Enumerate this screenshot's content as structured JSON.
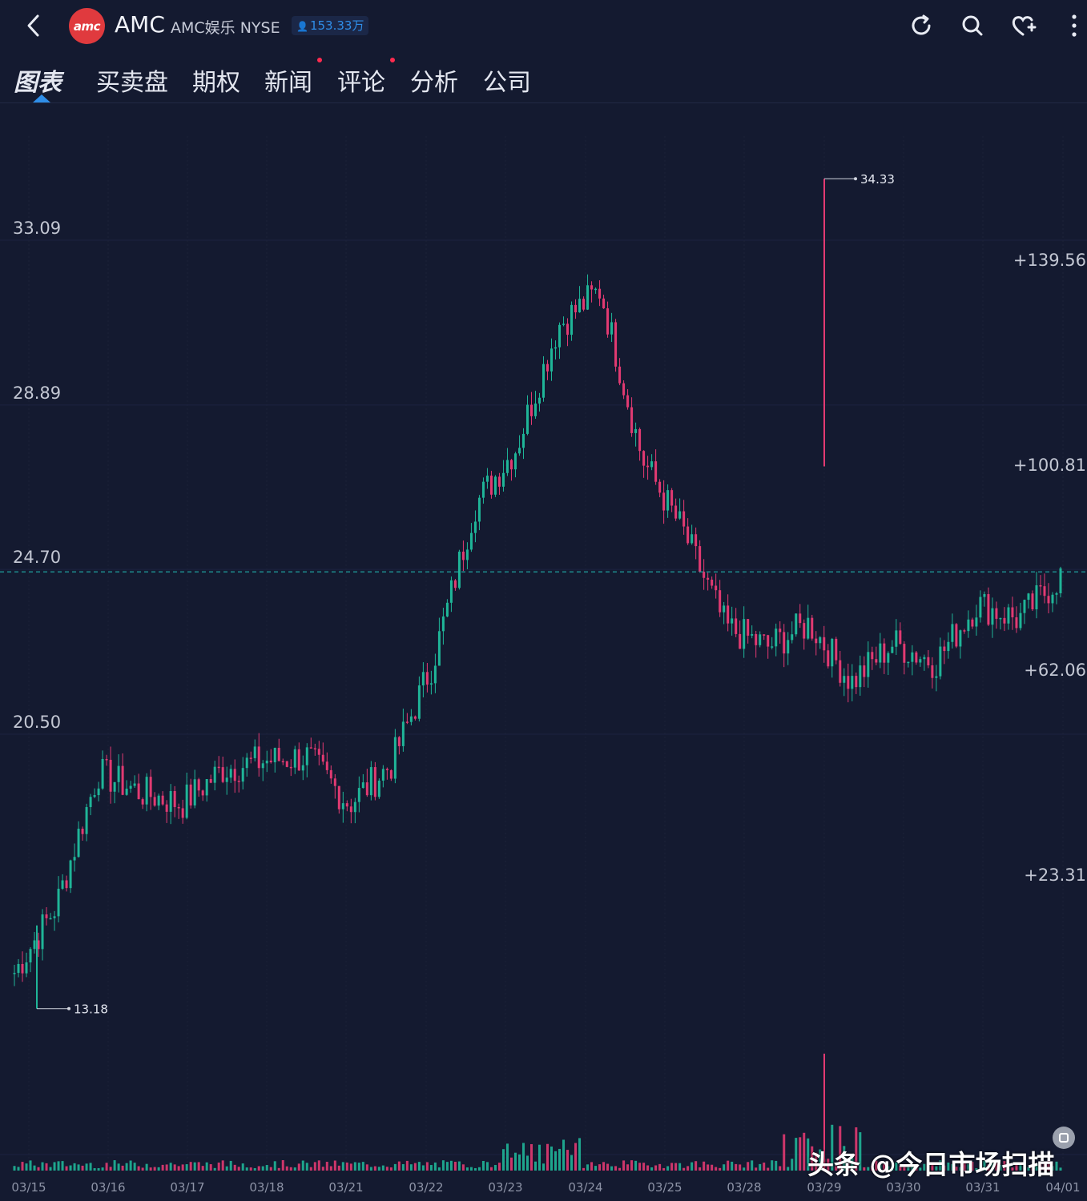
{
  "header": {
    "logo_text": "amc",
    "ticker": "AMC",
    "company": "AMC娱乐 NYSE",
    "followers": "153.33万",
    "icons": [
      "back-icon",
      "refresh-icon",
      "search-icon",
      "heart-add-icon",
      "more-icon"
    ]
  },
  "tabs": [
    {
      "label": "图表",
      "active": true,
      "dot": false
    },
    {
      "label": "买卖盘",
      "active": false,
      "dot": false
    },
    {
      "label": "期权",
      "active": false,
      "dot": false
    },
    {
      "label": "新闻",
      "active": false,
      "dot": true
    },
    {
      "label": "评论",
      "active": false,
      "dot": true
    },
    {
      "label": "分析",
      "active": false,
      "dot": false
    },
    {
      "label": "公司",
      "active": false,
      "dot": false
    }
  ],
  "colors": {
    "background": "#141a30",
    "up": "#1fb598",
    "down": "#e23a72",
    "accent": "#2f8ee8",
    "reference_line": "#1fa3a0"
  },
  "chart_data": {
    "type": "candlestick",
    "price_axis_labels": [
      "33.09",
      "28.89",
      "24.70",
      "20.50"
    ],
    "price_axis_values": [
      33.09,
      28.89,
      24.7,
      20.5
    ],
    "percent_axis_labels": [
      "+139.56",
      "+100.81",
      "+62.06",
      "+23.31"
    ],
    "percent_axis_values": [
      139.56,
      100.81,
      62.06,
      23.31
    ],
    "reference_price": 24.31,
    "x_labels": [
      "03/15",
      "03/16",
      "03/17",
      "03/18",
      "03/21",
      "03/22",
      "03/23",
      "03/24",
      "03/25",
      "03/28",
      "03/29",
      "03/30",
      "03/31",
      "04/01"
    ],
    "max_marker": {
      "label": "34.33",
      "value": 34.33,
      "date": "03/29"
    },
    "min_marker": {
      "label": "13.18",
      "value": 13.18,
      "date": "03/15"
    },
    "approx_closes": [
      14.1,
      15.8,
      19.2,
      18.7,
      18.4,
      19.3,
      19.5,
      19.6,
      18.4,
      19.4,
      22.0,
      26.0,
      27.5,
      30.6,
      31.5,
      27.2,
      25.3,
      22.9,
      22.4,
      23.0,
      21.5,
      22.5,
      22.0,
      23.5,
      23.1,
      24.2
    ],
    "volume_spikes": [
      "03/23",
      "03/28",
      "03/29"
    ]
  },
  "watermark": "头条 @今日市场扫描"
}
